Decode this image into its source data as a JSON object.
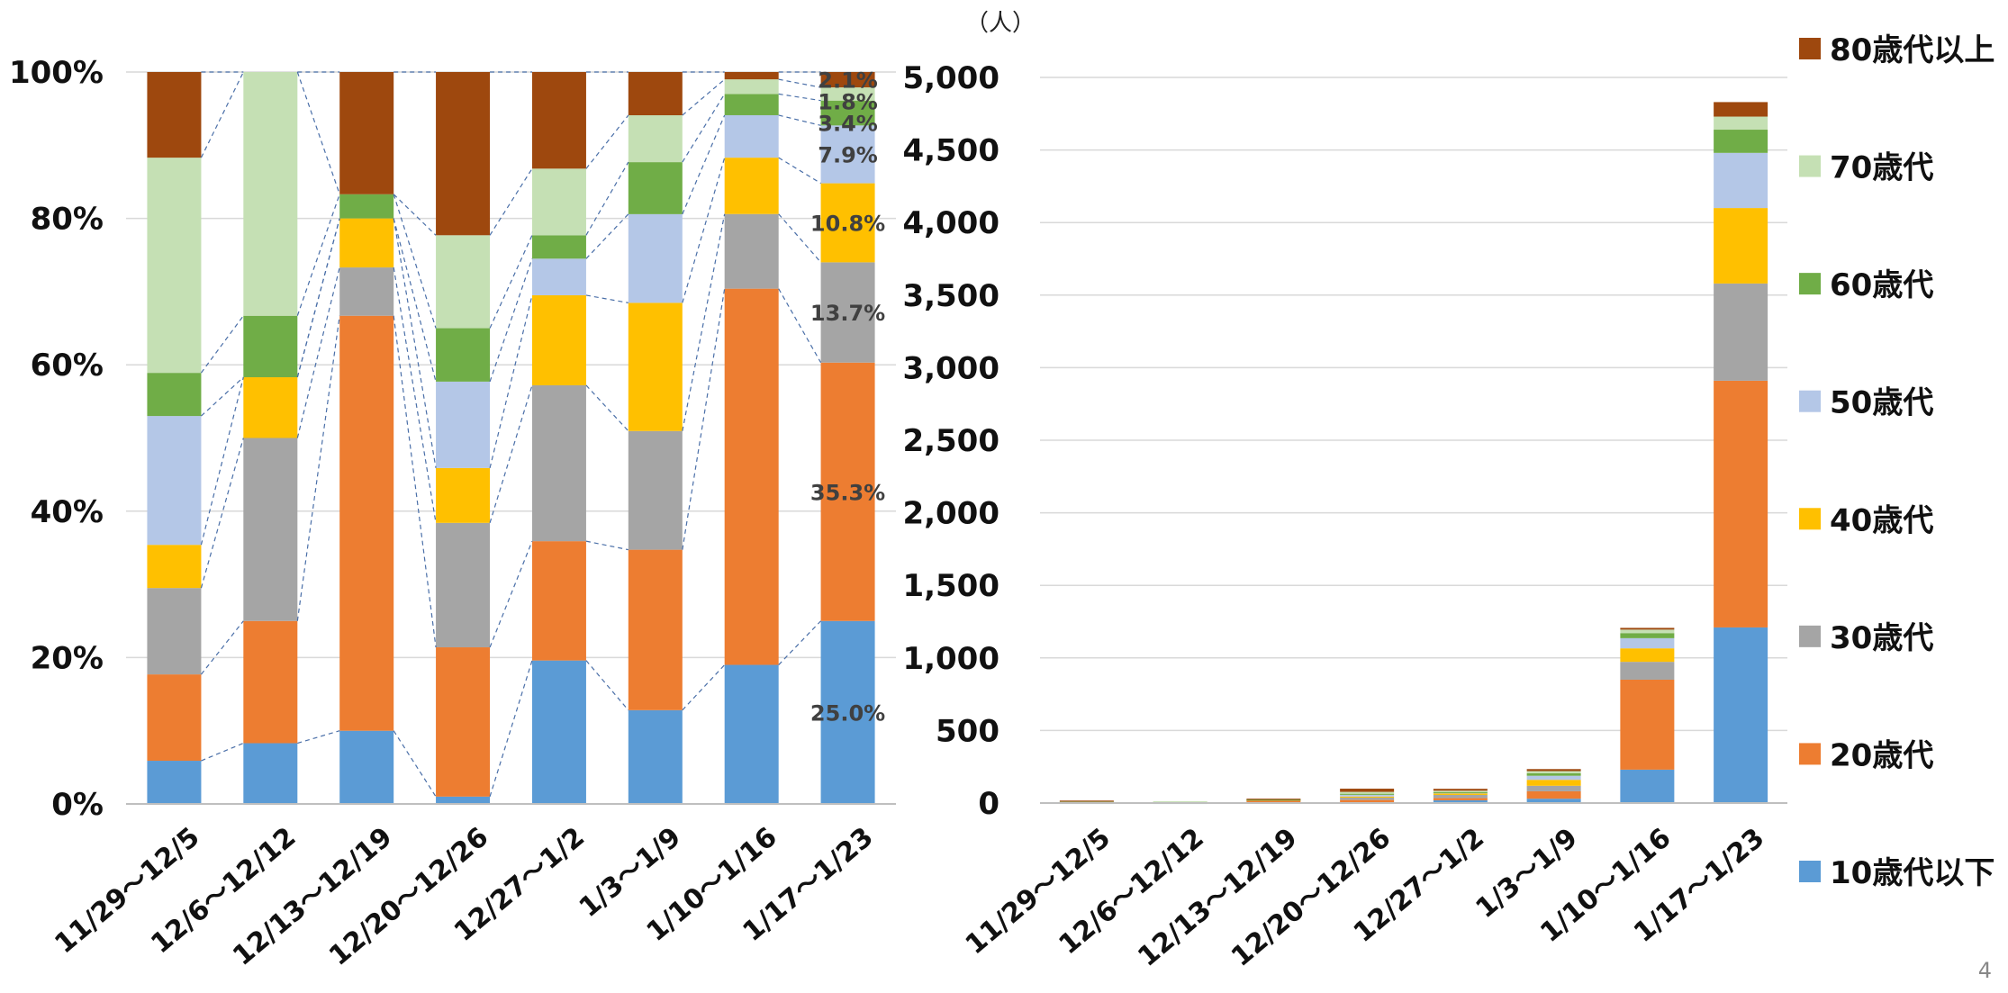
{
  "chart_data": [
    {
      "type": "bar",
      "stacked": "percent",
      "title": "",
      "categories": [
        "11/29～12/5",
        "12/6～12/12",
        "12/13～12/19",
        "12/20～12/26",
        "12/27～1/2",
        "1/3～1/9",
        "1/10～1/16",
        "1/17～1/23"
      ],
      "y_ticks": [
        "0%",
        "20%",
        "40%",
        "60%",
        "80%",
        "100%"
      ],
      "ylim": [
        0,
        100
      ],
      "series": [
        {
          "name": "10歳代以下",
          "color": "#5b9bd5",
          "values": [
            5.9,
            8.3,
            10.0,
            1.0,
            19.6,
            12.8,
            19.0,
            25.0
          ]
        },
        {
          "name": "20歳代",
          "color": "#ed7d31",
          "values": [
            11.8,
            16.7,
            56.7,
            20.4,
            16.3,
            21.9,
            51.4,
            35.3
          ]
        },
        {
          "name": "30歳代",
          "color": "#a5a5a5",
          "values": [
            11.8,
            25.0,
            6.6,
            17.0,
            21.3,
            16.2,
            10.2,
            13.7
          ]
        },
        {
          "name": "40歳代",
          "color": "#ffc000",
          "values": [
            5.9,
            8.3,
            6.7,
            7.5,
            12.3,
            17.5,
            7.7,
            10.8
          ]
        },
        {
          "name": "50歳代",
          "color": "#b4c7e7",
          "values": [
            17.6,
            0.0,
            0.0,
            11.8,
            5.0,
            12.1,
            5.8,
            7.9
          ]
        },
        {
          "name": "60歳代",
          "color": "#70ad47",
          "values": [
            5.9,
            8.4,
            3.3,
            7.3,
            3.2,
            7.1,
            2.9,
            3.4
          ]
        },
        {
          "name": "70歳代",
          "color": "#c5e0b4",
          "values": [
            29.4,
            33.3,
            0.0,
            12.7,
            9.1,
            6.4,
            2.0,
            1.8
          ]
        },
        {
          "name": "80歳代以上",
          "color": "#9e480e",
          "values": [
            11.7,
            0.0,
            16.7,
            22.3,
            13.2,
            5.9,
            1.0,
            2.1
          ]
        }
      ],
      "data_labels_last": [
        "25.0%",
        "35.3%",
        "13.7%",
        "10.8%",
        "7.9%",
        "3.4%",
        "1.8%",
        "2.1%"
      ],
      "series_connector_lines": true,
      "grid": true
    },
    {
      "type": "bar",
      "stacked": "absolute",
      "title": "",
      "unit_label": "（人）",
      "categories": [
        "11/29～12/5",
        "12/6～12/12",
        "12/13～12/19",
        "12/20～12/26",
        "12/27～1/2",
        "1/3～1/9",
        "1/10～1/16",
        "1/17～1/23"
      ],
      "y_ticks": [
        "0",
        "500",
        "1,000",
        "1,500",
        "2,000",
        "2,500",
        "3,000",
        "3,500",
        "4,000",
        "4,500",
        "5,000"
      ],
      "ylim": [
        0,
        5000
      ],
      "series": [
        {
          "name": "10歳代以下",
          "color": "#5b9bd5",
          "values": [
            1,
            1,
            3,
            1,
            19,
            30,
            230,
            1210
          ]
        },
        {
          "name": "20歳代",
          "color": "#ed7d31",
          "values": [
            2,
            2,
            17,
            20,
            16,
            51,
            620,
            1700
          ]
        },
        {
          "name": "30歳代",
          "color": "#a5a5a5",
          "values": [
            2,
            3,
            2,
            17,
            21,
            38,
            123,
            670
          ]
        },
        {
          "name": "40歳代",
          "color": "#ffc000",
          "values": [
            1,
            1,
            2,
            7,
            12,
            41,
            93,
            520
          ]
        },
        {
          "name": "50歳代",
          "color": "#b4c7e7",
          "values": [
            3,
            0,
            0,
            12,
            5,
            28,
            70,
            380
          ]
        },
        {
          "name": "60歳代",
          "color": "#70ad47",
          "values": [
            1,
            1,
            1,
            7,
            3,
            17,
            35,
            160
          ]
        },
        {
          "name": "70歳代",
          "color": "#c5e0b4",
          "values": [
            5,
            4,
            0,
            13,
            9,
            15,
            24,
            90
          ]
        },
        {
          "name": "80歳代以上",
          "color": "#9e480e",
          "values": [
            2,
            0,
            5,
            22,
            13,
            14,
            12,
            100
          ]
        }
      ],
      "legend": {
        "position": "right",
        "order": [
          "80歳代以上",
          "70歳代",
          "60歳代",
          "50歳代",
          "40歳代",
          "30歳代",
          "20歳代",
          "10歳代以下"
        ]
      },
      "grid": true
    }
  ],
  "page_number": "4"
}
